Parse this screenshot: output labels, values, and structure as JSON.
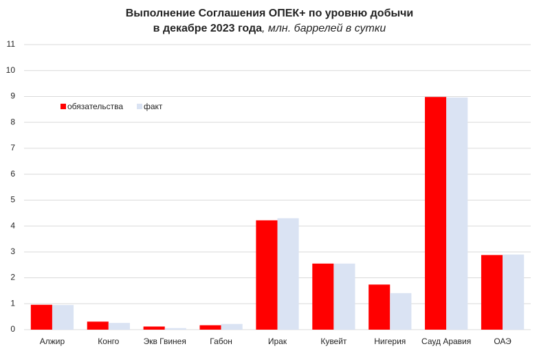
{
  "chart_data": {
    "type": "bar",
    "title": [
      "Выполнение Соглашения ОПЕК+ по уровню добычи",
      "в декабре 2023 года"
    ],
    "subtitle": ", млн. баррелей в сутки",
    "categories": [
      "Алжир",
      "Конго",
      "Экв Гвинея",
      "Габон",
      "Ирак",
      "Кувейт",
      "Нигерия",
      "Сауд Аравия",
      "ОАЭ"
    ],
    "series": [
      {
        "name": "обязательства",
        "color": "#ff0000",
        "values": [
          0.96,
          0.31,
          0.12,
          0.17,
          4.22,
          2.55,
          1.74,
          8.98,
          2.88
        ]
      },
      {
        "name": "факт",
        "color": "#dae3f3",
        "values": [
          0.95,
          0.26,
          0.06,
          0.22,
          4.3,
          2.55,
          1.41,
          8.96,
          2.9
        ]
      }
    ],
    "ylim": [
      0,
      11
    ],
    "yticks": [
      0,
      1,
      2,
      3,
      4,
      5,
      6,
      7,
      8,
      9,
      10,
      11
    ],
    "grid": true,
    "legend": "top-left"
  }
}
